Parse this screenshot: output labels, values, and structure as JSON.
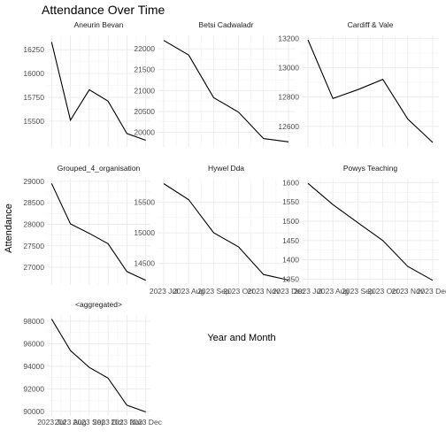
{
  "chart_data": {
    "type": "line",
    "title": "Attendance Over Time",
    "xlabel": "Year and Month",
    "ylabel": "Attendance",
    "x": [
      "2023 Jul",
      "2023 Aug",
      "2023 Sep",
      "2023 Oct",
      "2023 Nov",
      "2023 Dec"
    ],
    "x_tick_labels": [
      "2023 Jul",
      "2023 Aug",
      "2023 Sep",
      "2023 Oct",
      "2023 Nov",
      "2023 Dec"
    ],
    "legend": "none",
    "grid": true,
    "facets": [
      {
        "name": "Aneurin Bevan",
        "values": [
          16330,
          15510,
          15830,
          15710,
          15370,
          15300
        ],
        "ylim": [
          15230,
          16400
        ],
        "yticks": [
          15500,
          15750,
          16000,
          16250
        ],
        "ytick_labels": [
          "15500",
          "15750",
          "16000",
          "16250"
        ]
      },
      {
        "name": "Betsi Cadwaladr",
        "values": [
          22200,
          21850,
          20830,
          20480,
          19850,
          19770
        ],
        "ylim": [
          19650,
          22320
        ],
        "yticks": [
          20000,
          20500,
          21000,
          21500,
          22000
        ],
        "ytick_labels": [
          "20000",
          "20500",
          "21000",
          "21500",
          "22000"
        ]
      },
      {
        "name": "Cardiff & Vale",
        "values": [
          13190,
          12790,
          12850,
          12920,
          12650,
          12490
        ],
        "ylim": [
          12460,
          13220
        ],
        "yticks": [
          12600,
          12800,
          13000,
          13200
        ],
        "ytick_labels": [
          "12600",
          "12800",
          "13000",
          "13200"
        ]
      },
      {
        "name": "Grouped_4_organisation",
        "values": [
          28950,
          28010,
          27790,
          27550,
          26900,
          26700
        ],
        "ylim": [
          26590,
          29060
        ],
        "yticks": [
          27000,
          27500,
          28000,
          28500,
          29000
        ],
        "ytick_labels": [
          "27000",
          "27500",
          "28000",
          "28500",
          "29000"
        ]
      },
      {
        "name": "Hywel Dda",
        "values": [
          15800,
          15540,
          15000,
          14770,
          14320,
          14230
        ],
        "ylim": [
          14150,
          15880
        ],
        "yticks": [
          14500,
          15000,
          15500
        ],
        "ytick_labels": [
          "14500",
          "15000",
          "15500"
        ]
      },
      {
        "name": "Powys Teaching",
        "values": [
          1598,
          1543,
          1496,
          1450,
          1383,
          1347
        ],
        "ylim": [
          1335,
          1610
        ],
        "yticks": [
          1350,
          1400,
          1450,
          1500,
          1550,
          1600
        ],
        "ytick_labels": [
          "1350",
          "1400",
          "1450",
          "1500",
          "1550",
          "1600"
        ]
      },
      {
        "name": "<aggregated>",
        "values": [
          98200,
          95400,
          93900,
          92950,
          90550,
          89950
        ],
        "ylim": [
          89600,
          98550
        ],
        "yticks": [
          90000,
          92000,
          94000,
          96000,
          98000
        ],
        "ytick_labels": [
          "90000",
          "92000",
          "94000",
          "96000",
          "98000"
        ]
      }
    ]
  }
}
